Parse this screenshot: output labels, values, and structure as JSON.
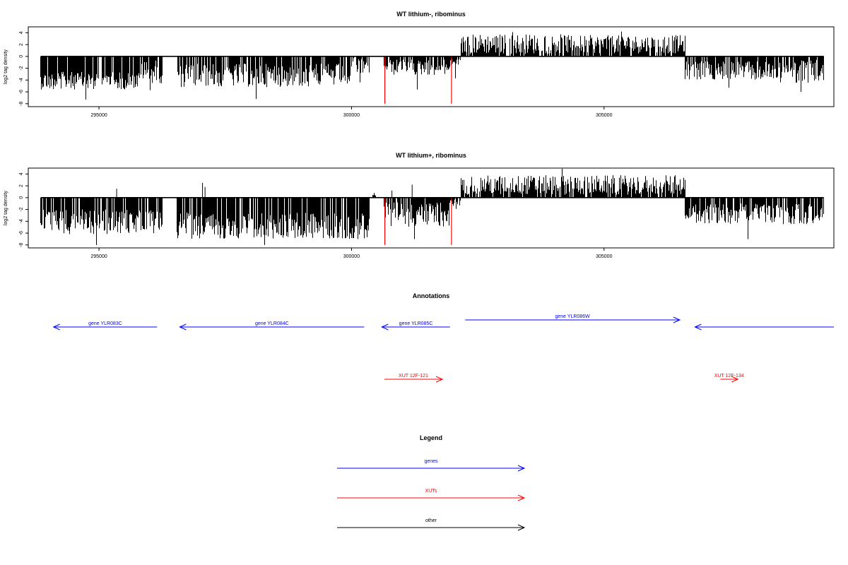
{
  "colors": {
    "axis": "#000000",
    "genes": "#0000ff",
    "xuts": "#ff0000",
    "other": "#000000",
    "highlight": "#ff0000"
  },
  "chart_data": [
    {
      "type": "bar",
      "title": "WT lithium-, ribominus",
      "xlabel": "",
      "ylabel": "log2 tag density",
      "xlim": [
        293600,
        309550
      ],
      "ylim": [
        -8.5,
        5
      ],
      "yticks": [
        "4",
        "2",
        "0",
        "-2",
        "-4",
        "-6",
        "-8"
      ],
      "ytick_values": [
        4,
        2,
        0,
        -2,
        -4,
        -6,
        -8
      ],
      "xticks": [
        "295000",
        "300000",
        "305000"
      ],
      "xtick_values": [
        295000,
        300000,
        305000
      ],
      "segments": [
        {
          "start": 293850,
          "end": 295800,
          "sign": -1,
          "min": 2.6,
          "max": 5.6,
          "extreme": 7.3
        },
        {
          "start": 295800,
          "end": 296250,
          "sign": -1,
          "min": 0.5,
          "max": 4.6,
          "extreme": 5.7
        },
        {
          "start": 296550,
          "end": 300000,
          "sign": -1,
          "min": 1.2,
          "max": 5.2,
          "extreme": 7.2
        },
        {
          "start": 300000,
          "end": 300350,
          "sign": -1,
          "min": 0.3,
          "max": 3.0,
          "extreme": 4.4
        },
        {
          "start": 300650,
          "end": 300720,
          "sign": -1,
          "min": 0.8,
          "max": 2.2,
          "extreme": 2.2
        },
        {
          "start": 300750,
          "end": 301950,
          "sign": -1,
          "min": 0.5,
          "max": 3.2,
          "extreme": 5.6
        },
        {
          "start": 301950,
          "end": 302150,
          "sign": -1,
          "min": 0.2,
          "max": 1.5,
          "extreme": 3.7
        },
        {
          "start": 302150,
          "end": 302250,
          "sign": 1,
          "min": 0.3,
          "max": 3.3,
          "extreme": 3.3
        },
        {
          "start": 302250,
          "end": 304300,
          "sign": 1,
          "min": 0.4,
          "max": 3.8,
          "extreme": 4.1
        },
        {
          "start": 304300,
          "end": 306600,
          "sign": 1,
          "min": 0.5,
          "max": 3.6,
          "extreme": 4.2
        },
        {
          "start": 306600,
          "end": 308500,
          "sign": -1,
          "min": 0.8,
          "max": 4.0,
          "extreme": 5.3
        },
        {
          "start": 308500,
          "end": 309350,
          "sign": -1,
          "min": 0.6,
          "max": 4.5,
          "extreme": 6.0
        }
      ],
      "highlight_bars": [
        {
          "x": 300660,
          "value": -8
        },
        {
          "x": 301980,
          "value": -8
        }
      ]
    },
    {
      "type": "bar",
      "title": "WT lithium+, ribominus",
      "xlabel": "",
      "ylabel": "log2 tag density",
      "xlim": [
        293600,
        309550
      ],
      "ylim": [
        -8.5,
        5
      ],
      "yticks": [
        "4",
        "2",
        "0",
        "-2",
        "-4",
        "-6",
        "-8"
      ],
      "ytick_values": [
        4,
        2,
        0,
        -2,
        -4,
        -6,
        -8
      ],
      "xticks": [
        "295000",
        "300000",
        "305000"
      ],
      "xtick_values": [
        295000,
        300000,
        305000
      ],
      "segments": [
        {
          "start": 293850,
          "end": 296250,
          "sign": -1,
          "min": 2.0,
          "max": 6.2,
          "extreme": 8.0
        },
        {
          "start": 296550,
          "end": 300350,
          "sign": -1,
          "min": 2.5,
          "max": 7.0,
          "extreme": 8.0
        },
        {
          "start": 300400,
          "end": 300480,
          "sign": 1,
          "min": 0.2,
          "max": 0.8,
          "extreme": 0.8
        },
        {
          "start": 300650,
          "end": 301950,
          "sign": -1,
          "min": 0.8,
          "max": 5.0,
          "extreme": 7.0
        },
        {
          "start": 301950,
          "end": 302150,
          "sign": -1,
          "min": 0.2,
          "max": 1.5,
          "extreme": 1.9
        },
        {
          "start": 302150,
          "end": 306600,
          "sign": 1,
          "min": 0.5,
          "max": 3.8,
          "extreme": 4.9
        },
        {
          "start": 306600,
          "end": 309350,
          "sign": -1,
          "min": 1.0,
          "max": 4.5,
          "extreme": 7.0
        }
      ],
      "positive_spikes": [
        {
          "x": 295350,
          "value": 1.5
        },
        {
          "x": 297050,
          "value": 2.5
        },
        {
          "x": 297100,
          "value": 1.8
        },
        {
          "x": 300800,
          "value": 1.2
        },
        {
          "x": 301200,
          "value": 2.2
        }
      ],
      "highlight_bars": [
        {
          "x": 300660,
          "value": -8
        },
        {
          "x": 301980,
          "value": -8
        }
      ]
    }
  ],
  "annotations": {
    "title": "Annotations",
    "features": [
      {
        "label": "gene YLR083C",
        "kind": "gene",
        "start": 296150,
        "end": 294100
      },
      {
        "label": "gene YLR084C",
        "kind": "gene",
        "start": 300250,
        "end": 296600
      },
      {
        "label": "gene YLR085C",
        "kind": "gene",
        "start": 301950,
        "end": 300600
      },
      {
        "label": "gene YLR086W",
        "kind": "gene",
        "start": 302250,
        "end": 306500
      },
      {
        "label": "",
        "kind": "gene",
        "start": 309550,
        "end": 306800
      },
      {
        "label": "XUT 12F-121",
        "kind": "xut",
        "start": 300650,
        "end": 301800
      },
      {
        "label": "XUT 12F-134",
        "kind": "xut",
        "start": 307300,
        "end": 307650
      }
    ]
  },
  "legend": {
    "title": "Legend",
    "items": [
      {
        "label": "genes",
        "kind": "gene"
      },
      {
        "label": "XUTs",
        "kind": "xut"
      },
      {
        "label": "other",
        "kind": "other"
      }
    ]
  }
}
